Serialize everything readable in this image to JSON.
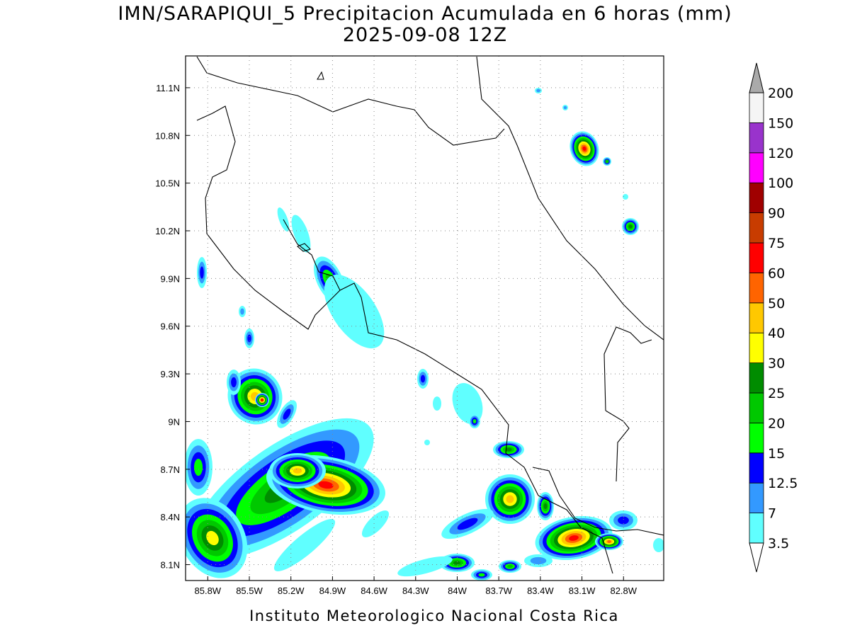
{
  "title": "IMN/SARAPIQUI_5 Precipitacion Acumulada en 6 horas (mm)",
  "subtitle": "2025-09-08 12Z",
  "footer": "Instituto Meteorologico Nacional Costa Rica",
  "map": {
    "xlim": [
      -85.96,
      -82.51
    ],
    "ylim": [
      8.0,
      11.3
    ],
    "xticks": [
      {
        "value": -85.8,
        "label": "85.8W"
      },
      {
        "value": -85.5,
        "label": "85.5W"
      },
      {
        "value": -85.2,
        "label": "85.2W"
      },
      {
        "value": -84.9,
        "label": "84.9W"
      },
      {
        "value": -84.6,
        "label": "84.6W"
      },
      {
        "value": -84.3,
        "label": "84.3W"
      },
      {
        "value": -84.0,
        "label": "84W"
      },
      {
        "value": -83.7,
        "label": "83.7W"
      },
      {
        "value": -83.4,
        "label": "83.4W"
      },
      {
        "value": -83.1,
        "label": "83.1W"
      },
      {
        "value": -82.8,
        "label": "82.8W"
      }
    ],
    "yticks": [
      {
        "value": 8.1,
        "label": "8.1N"
      },
      {
        "value": 8.4,
        "label": "8.4N"
      },
      {
        "value": 8.7,
        "label": "8.7N"
      },
      {
        "value": 9.0,
        "label": "9N"
      },
      {
        "value": 9.3,
        "label": "9.3N"
      },
      {
        "value": 9.6,
        "label": "9.6N"
      },
      {
        "value": 9.9,
        "label": "9.9N"
      },
      {
        "value": 10.2,
        "label": "10.2N"
      },
      {
        "value": 10.5,
        "label": "10.5N"
      },
      {
        "value": 10.8,
        "label": "10.8N"
      },
      {
        "value": 11.1,
        "label": "11.1N"
      }
    ]
  },
  "colorbar": {
    "levels": [
      3.5,
      7,
      12.5,
      15,
      20,
      25,
      30,
      40,
      50,
      60,
      75,
      90,
      100,
      120,
      150,
      200
    ],
    "colors": [
      "#60ffff",
      "#3399ff",
      "#0000ff",
      "#00ff00",
      "#00c800",
      "#008c00",
      "#ffff00",
      "#ffc800",
      "#ff6400",
      "#ff0000",
      "#c83c00",
      "#a00000",
      "#ff00ff",
      "#9933cc",
      "#f5f5f5"
    ],
    "over_color": "#aaaaaa",
    "under_color": "#ffffff"
  }
}
